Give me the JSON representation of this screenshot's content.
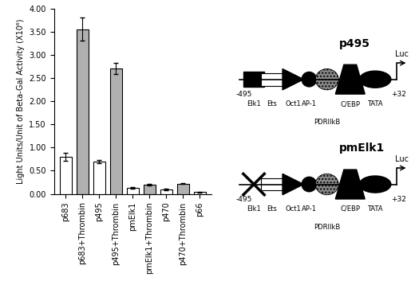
{
  "chart_data": {
    "type": "bar",
    "y_label": "Light Units/Unit of Beta-Gal Activity (X10⁶)",
    "categories": [
      "p683",
      "p683+Thrombin",
      "p495",
      "p495+Thrombin",
      "pmElk1",
      "pmElk1+Thrombin",
      "p470",
      "p470+Thrombin",
      "p66"
    ],
    "values": [
      0.8,
      3.55,
      0.7,
      2.7,
      0.13,
      0.2,
      0.1,
      0.22,
      0.04
    ],
    "errors": [
      0.09,
      0.25,
      0.03,
      0.12,
      0.01,
      0.01,
      0.02,
      0.01,
      0.005
    ],
    "colors": [
      "#ffffff",
      "#b0b0b0",
      "#ffffff",
      "#b0b0b0",
      "#ffffff",
      "#b0b0b0",
      "#ffffff",
      "#b0b0b0",
      "#ffffff"
    ],
    "ylim": [
      0,
      4
    ],
    "yticks": [
      {
        "value": 0,
        "label": "0.00"
      },
      {
        "value": 0.5,
        "label": "0.50"
      },
      {
        "value": 1,
        "label": "1.00"
      },
      {
        "value": 1.5,
        "label": "1.50"
      },
      {
        "value": 2,
        "label": "2.00"
      },
      {
        "value": 2.5,
        "label": "2.50"
      },
      {
        "value": 3,
        "label": "3.00"
      },
      {
        "value": 3.5,
        "label": "3.50"
      },
      {
        "value": 4,
        "label": "4.00"
      }
    ],
    "grid": false
  },
  "diagram": {
    "constructs": [
      {
        "name": "p495",
        "start": "-495",
        "end": "+32",
        "reporter": "Luc",
        "mutated": null,
        "elements": [
          "Elk1",
          "Ets",
          "Oct1",
          "AP-1",
          "PDRIIkB",
          "C/EBP",
          "TATA"
        ]
      },
      {
        "name": "pmElk1",
        "start": "-495",
        "end": "+32",
        "reporter": "Luc",
        "mutated": "Elk1",
        "elements": [
          "Elk1",
          "Ets",
          "Oct1",
          "AP-1",
          "PDRIIkB",
          "C/EBP",
          "TATA"
        ]
      }
    ]
  }
}
